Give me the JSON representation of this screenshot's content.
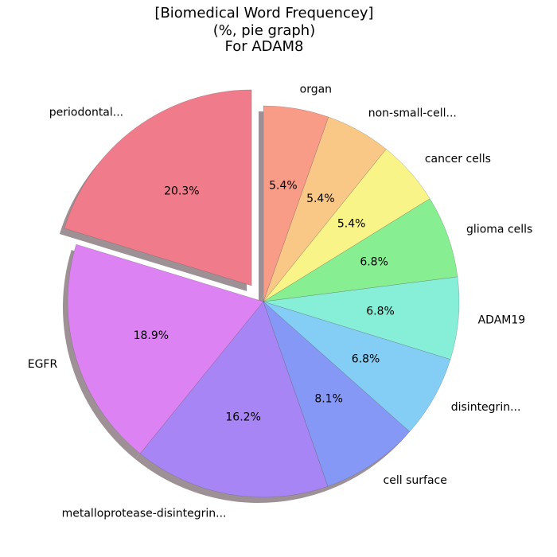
{
  "chart_data": {
    "type": "pie",
    "title": [
      "[Biomedical Word Frequencey]",
      "(%, pie graph)",
      "For ADAM8"
    ],
    "slices": [
      {
        "label": "periodontal...",
        "value": 20.3,
        "pct_label": "20.3%",
        "color": "#f07b8a",
        "exploded": true
      },
      {
        "label": "EGFR",
        "value": 18.9,
        "pct_label": "18.9%",
        "color": "#dd82f2"
      },
      {
        "label": "metalloprotease-disintegrin...",
        "value": 16.2,
        "pct_label": "16.2%",
        "color": "#a885f4"
      },
      {
        "label": "cell surface",
        "value": 8.1,
        "pct_label": "8.1%",
        "color": "#8698f5"
      },
      {
        "label": "disintegrin...",
        "value": 6.8,
        "pct_label": "6.8%",
        "color": "#84cef5"
      },
      {
        "label": "ADAM19",
        "value": 6.8,
        "pct_label": "6.8%",
        "color": "#87eed8"
      },
      {
        "label": "glioma cells",
        "value": 6.8,
        "pct_label": "6.8%",
        "color": "#87ee92"
      },
      {
        "label": "cancer cells",
        "value": 5.4,
        "pct_label": "5.4%",
        "color": "#f9f487"
      },
      {
        "label": "non-small-cell...",
        "value": 5.4,
        "pct_label": "5.4%",
        "color": "#f9c887"
      },
      {
        "label": "organ",
        "value": 5.4,
        "pct_label": "5.4%",
        "color": "#f99c87"
      }
    ],
    "start_angle_deg": 90,
    "direction": "counterclockwise",
    "shadow": true,
    "legend": "none"
  }
}
